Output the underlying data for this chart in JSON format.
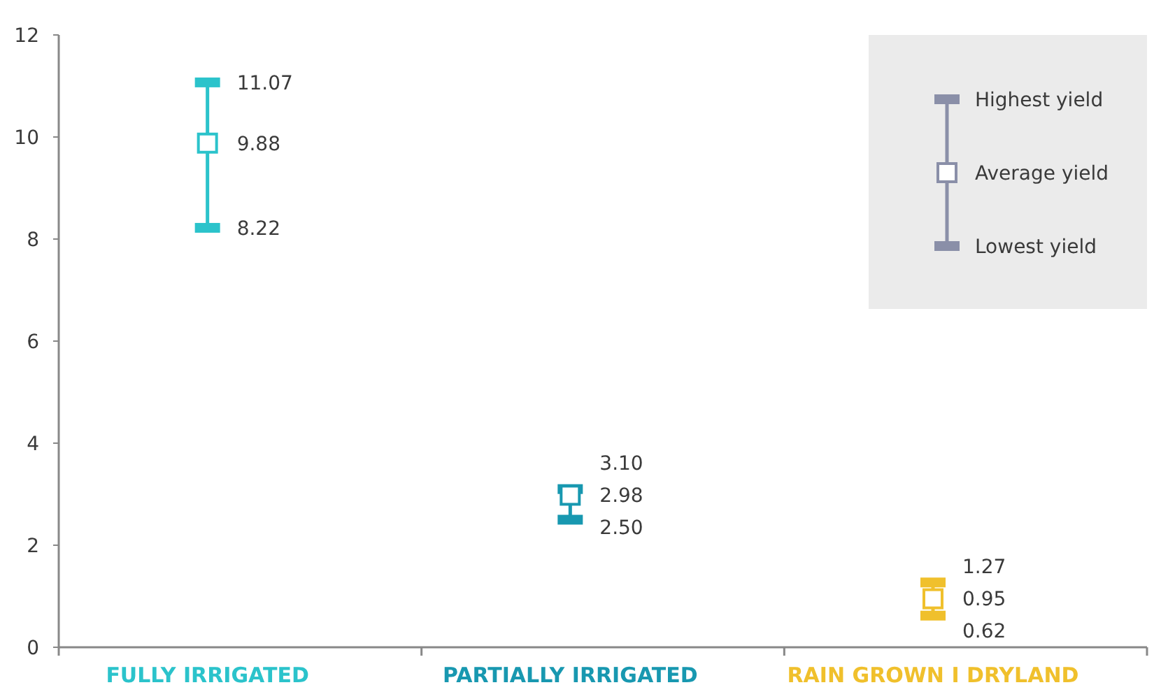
{
  "chart_data": {
    "type": "scatter",
    "categories": [
      "FULLY IRRIGATED",
      "PARTIALLY  IRRIGATED",
      "RAIN GROWN I DRYLAND"
    ],
    "colors": [
      "#2bc3cb",
      "#1898b0",
      "#f0c02c"
    ],
    "series": [
      {
        "name": "Highest yield",
        "marker": "square",
        "colors": [
          "#2bc3cb",
          "#1898b0",
          "#f0c02c"
        ],
        "values": [
          11.07,
          3.1,
          1.27
        ],
        "value_labels": [
          "11.07",
          "3.10",
          "1.27"
        ]
      },
      {
        "name": "Average yield",
        "marker": "square",
        "colors": [
          "#2bc3cb",
          "#1898b0",
          "#f0c02c"
        ],
        "values": [
          9.88,
          2.98,
          0.95
        ],
        "value_labels": [
          "9.88",
          "2.98",
          "0.95"
        ]
      },
      {
        "name": "Lowest yield",
        "marker": "square",
        "colors": [
          "#2bc3cb",
          "#1898b0",
          "#f0c02c"
        ],
        "values": [
          8.22,
          2.5,
          0.62
        ],
        "value_labels": [
          "8.22",
          "2.50",
          "0.62"
        ]
      }
    ],
    "ylim": [
      0,
      12
    ],
    "yticks": [
      0,
      2,
      4,
      6,
      8,
      10,
      12
    ],
    "grid": false,
    "legend": "top right"
  }
}
